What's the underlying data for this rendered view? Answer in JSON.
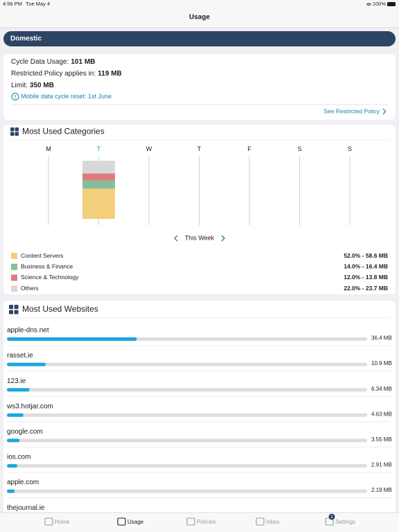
{
  "status_bar": {
    "time": "4:56 PM",
    "date": "Tue May 4",
    "battery": "100%"
  },
  "header": {
    "title": "Usage"
  },
  "plan": {
    "name": "Domestic"
  },
  "summary": {
    "cycle_label": "Cycle Data Usage:",
    "cycle_usage": {
      "value": 101,
      "label": "101 MB"
    },
    "restricted_label": "Restricted Policy applies in:",
    "restricted_value": "119 MB",
    "limit_label": "Limit:",
    "limit_value": "350 MB",
    "reset_note": "Mobile data cycle reset: 1st June",
    "link": "See Restricted Policy"
  },
  "categories": {
    "title": "Most Used Categories",
    "days": [
      "M",
      "T",
      "W",
      "T",
      "F",
      "S",
      "S"
    ],
    "active_day": 1,
    "week_label": "This Week",
    "items": [
      {
        "name": "Content Servers",
        "color": "#f4cf7b",
        "percent": 52.0,
        "mb": 58.6,
        "label": "52.0% - 58.6 MB"
      },
      {
        "name": "Business & Finance",
        "color": "#84bf9a",
        "percent": 14.0,
        "mb": 16.4,
        "label": "14.0% - 16.4 MB"
      },
      {
        "name": "Science & Technology",
        "color": "#e07b7b",
        "percent": 12.0,
        "mb": 13.8,
        "label": "12.0% - 13.8 MB"
      },
      {
        "name": "Others",
        "color": "#d8d8d8",
        "percent": 22.0,
        "mb": 23.7,
        "label": "22.0% - 23.7 MB"
      }
    ]
  },
  "websites": {
    "title": "Most Used Websites",
    "color": "#1aa7e0",
    "items": [
      {
        "name": "apple-dns.net",
        "value": 36.4,
        "label": "36.4 MB"
      },
      {
        "name": "rasset.ie",
        "value": 10.9,
        "label": "10.9 MB"
      },
      {
        "name": "123.ie",
        "value": 6.34,
        "label": "6.34 MB"
      },
      {
        "name": "ws3.hotjar.com",
        "value": 4.63,
        "label": "4.63 MB"
      },
      {
        "name": "google.com",
        "value": 3.55,
        "label": "3.55 MB"
      },
      {
        "name": "ios.com",
        "value": 2.91,
        "label": "2.91 MB"
      },
      {
        "name": "apple.com",
        "value": 2.19,
        "label": "2.19 MB"
      },
      {
        "name": "thejournal.ie"
      }
    ]
  },
  "tab_bar": {
    "items": [
      "Home",
      "Usage",
      "Policies",
      "Inbox",
      "Settings"
    ],
    "active": 1,
    "badge": {
      "item": 4,
      "count": "1"
    }
  }
}
